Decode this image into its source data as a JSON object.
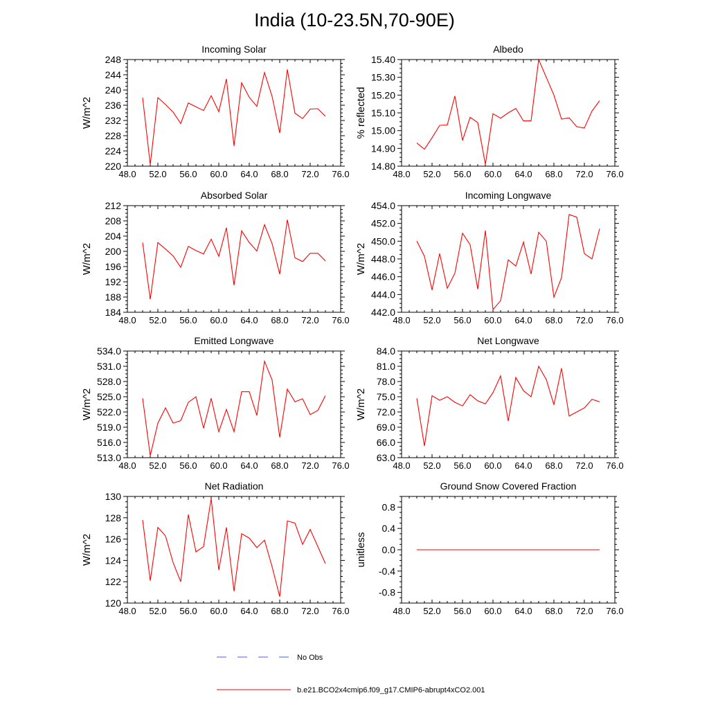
{
  "title": "India (10-23.5N,70-90E)",
  "legend": [
    {
      "label": "No Obs",
      "style": "dashed",
      "color": "#4a5fd0"
    },
    {
      "label": "b.e21.BCO2x4cmip6.f09_g17.CMIP6-abrupt4xCO2.001",
      "style": "solid",
      "color": "#ff0000"
    }
  ],
  "chart_data": [
    {
      "type": "line",
      "title": "Incoming Solar",
      "ylabel": "W/m^2",
      "xlim": [
        48,
        76
      ],
      "ylim": [
        220,
        248
      ],
      "xticks": [
        48,
        52,
        56,
        60,
        64,
        68,
        72,
        76
      ],
      "xtick_labels": [
        "48.0",
        "52.0",
        "56.0",
        "60.0",
        "64.0",
        "68.0",
        "72.0",
        "76.0"
      ],
      "yticks": [
        220,
        224,
        228,
        232,
        236,
        240,
        244,
        248
      ],
      "ytick_labels": [
        "220",
        "224",
        "228",
        "232",
        "236",
        "240",
        "244",
        "248"
      ],
      "series": [
        {
          "name": "b.e21.BCO2x4cmip6.f09_g17.CMIP6-abrupt4xCO2.001",
          "color": "#ff0000",
          "x": [
            50,
            51,
            52,
            53,
            54,
            55,
            56,
            57,
            58,
            59,
            60,
            61,
            62,
            63,
            64,
            65,
            66,
            67,
            68,
            69,
            70,
            71,
            72,
            73,
            74
          ],
          "y": [
            238,
            220.4,
            238,
            236.2,
            234.2,
            231.2,
            236.6,
            235.6,
            234.6,
            238.5,
            234.3,
            242.9,
            225.3,
            241.9,
            238.1,
            235.7,
            244.6,
            238.3,
            228.7,
            245.4,
            233.9,
            232.5,
            235.0,
            235.1,
            233.1
          ]
        }
      ]
    },
    {
      "type": "line",
      "title": "Albedo",
      "ylabel": "% reflected",
      "xlim": [
        48,
        76
      ],
      "ylim": [
        14.8,
        15.4
      ],
      "xticks": [
        48,
        52,
        56,
        60,
        64,
        68,
        72,
        76
      ],
      "xtick_labels": [
        "48.0",
        "52.0",
        "56.0",
        "60.0",
        "64.0",
        "68.0",
        "72.0",
        "76.0"
      ],
      "yticks": [
        14.8,
        14.9,
        15.0,
        15.1,
        15.2,
        15.3,
        15.4
      ],
      "ytick_labels": [
        "14.80",
        "14.90",
        "15.00",
        "15.10",
        "15.20",
        "15.30",
        "15.40"
      ],
      "series": [
        {
          "name": "b.e21.BCO2x4cmip6.f09_g17.CMIP6-abrupt4xCO2.001",
          "color": "#ff0000",
          "x": [
            50,
            51,
            52,
            53,
            54,
            55,
            56,
            57,
            58,
            59,
            60,
            61,
            62,
            63,
            64,
            65,
            66,
            67,
            68,
            69,
            70,
            71,
            72,
            73,
            74
          ],
          "y": [
            14.93,
            14.895,
            14.96,
            15.03,
            15.032,
            15.195,
            14.945,
            15.075,
            15.045,
            14.81,
            15.095,
            15.07,
            15.1,
            15.125,
            15.055,
            15.055,
            15.4,
            15.3,
            15.2,
            15.065,
            15.072,
            15.022,
            15.015,
            15.11,
            15.168
          ]
        }
      ]
    },
    {
      "type": "line",
      "title": "Absorbed Solar",
      "ylabel": "W/m^2",
      "xlim": [
        48,
        76
      ],
      "ylim": [
        184,
        212
      ],
      "xticks": [
        48,
        52,
        56,
        60,
        64,
        68,
        72,
        76
      ],
      "xtick_labels": [
        "48.0",
        "52.0",
        "56.0",
        "60.0",
        "64.0",
        "68.0",
        "72.0",
        "76.0"
      ],
      "yticks": [
        184,
        188,
        192,
        196,
        200,
        204,
        208,
        212
      ],
      "ytick_labels": [
        "184",
        "188",
        "192",
        "196",
        "200",
        "204",
        "208",
        "212"
      ],
      "series": [
        {
          "name": "b.e21.BCO2x4cmip6.f09_g17.CMIP6-abrupt4xCO2.001",
          "color": "#ff0000",
          "x": [
            50,
            51,
            52,
            53,
            54,
            55,
            56,
            57,
            58,
            59,
            60,
            61,
            62,
            63,
            64,
            65,
            66,
            67,
            68,
            69,
            70,
            71,
            72,
            73,
            74
          ],
          "y": [
            202.3,
            187.4,
            202.3,
            200.6,
            198.8,
            195.8,
            201.3,
            200.2,
            199.3,
            203.2,
            198.7,
            206.2,
            191.1,
            205.4,
            202.3,
            200.1,
            207.0,
            202.0,
            194.0,
            208.3,
            198.3,
            197.3,
            199.5,
            199.5,
            197.5
          ]
        }
      ]
    },
    {
      "type": "line",
      "title": "Incoming Longwave",
      "ylabel": "W/m^2",
      "xlim": [
        48,
        76
      ],
      "ylim": [
        442,
        454
      ],
      "xticks": [
        48,
        52,
        56,
        60,
        64,
        68,
        72,
        76
      ],
      "xtick_labels": [
        "48.0",
        "52.0",
        "56.0",
        "60.0",
        "64.0",
        "68.0",
        "72.0",
        "76.0"
      ],
      "yticks": [
        442,
        444,
        446,
        448,
        450,
        452,
        454
      ],
      "ytick_labels": [
        "442.0",
        "444.0",
        "446.0",
        "448.0",
        "450.0",
        "452.0",
        "454.0"
      ],
      "series": [
        {
          "name": "b.e21.BCO2x4cmip6.f09_g17.CMIP6-abrupt4xCO2.001",
          "color": "#ff0000",
          "x": [
            50,
            51,
            52,
            53,
            54,
            55,
            56,
            57,
            58,
            59,
            60,
            61,
            62,
            63,
            64,
            65,
            66,
            67,
            68,
            69,
            70,
            71,
            72,
            73,
            74
          ],
          "y": [
            450.0,
            448.3,
            444.5,
            448.6,
            444.7,
            446.4,
            450.9,
            449.6,
            444.6,
            451.2,
            442.3,
            443.3,
            447.9,
            447.2,
            449.9,
            446.3,
            451.0,
            450.0,
            443.7,
            445.9,
            453.0,
            452.7,
            448.6,
            448.0,
            451.4
          ]
        }
      ]
    },
    {
      "type": "line",
      "title": "Emitted Longwave",
      "ylabel": "W/m^2",
      "xlim": [
        48,
        76
      ],
      "ylim": [
        513,
        534
      ],
      "xticks": [
        48,
        52,
        56,
        60,
        64,
        68,
        72,
        76
      ],
      "xtick_labels": [
        "48.0",
        "52.0",
        "56.0",
        "60.0",
        "64.0",
        "68.0",
        "72.0",
        "76.0"
      ],
      "yticks": [
        513,
        516,
        519,
        522,
        525,
        528,
        531,
        534
      ],
      "ytick_labels": [
        "513.0",
        "516.0",
        "519.0",
        "522.0",
        "525.0",
        "528.0",
        "531.0",
        "534.0"
      ],
      "series": [
        {
          "name": "b.e21.BCO2x4cmip6.f09_g17.CMIP6-abrupt4xCO2.001",
          "color": "#ff0000",
          "x": [
            50,
            51,
            52,
            53,
            54,
            55,
            56,
            57,
            58,
            59,
            60,
            61,
            62,
            63,
            64,
            65,
            66,
            67,
            68,
            69,
            70,
            71,
            72,
            73,
            74
          ],
          "y": [
            524.7,
            513.4,
            519.8,
            522.8,
            519.8,
            520.3,
            523.9,
            525.0,
            518.8,
            524.7,
            518.1,
            522.5,
            518.1,
            526.0,
            526.0,
            521.3,
            532.0,
            528.3,
            517.0,
            526.5,
            524.0,
            524.6,
            521.5,
            522.3,
            525.2
          ]
        }
      ]
    },
    {
      "type": "line",
      "title": "Net Longwave",
      "ylabel": "W/m^2",
      "xlim": [
        48,
        76
      ],
      "ylim": [
        63,
        84
      ],
      "xticks": [
        48,
        52,
        56,
        60,
        64,
        68,
        72,
        76
      ],
      "xtick_labels": [
        "48.0",
        "52.0",
        "56.0",
        "60.0",
        "64.0",
        "68.0",
        "72.0",
        "76.0"
      ],
      "yticks": [
        63,
        66,
        69,
        72,
        75,
        78,
        81,
        84
      ],
      "ytick_labels": [
        "63.0",
        "66.0",
        "69.0",
        "72.0",
        "75.0",
        "78.0",
        "81.0",
        "84.0"
      ],
      "series": [
        {
          "name": "b.e21.BCO2x4cmip6.f09_g17.CMIP6-abrupt4xCO2.001",
          "color": "#ff0000",
          "x": [
            50,
            51,
            52,
            53,
            54,
            55,
            56,
            57,
            58,
            59,
            60,
            61,
            62,
            63,
            64,
            65,
            66,
            67,
            68,
            69,
            70,
            71,
            72,
            73,
            74
          ],
          "y": [
            74.7,
            65.3,
            75.2,
            74.3,
            75.0,
            73.9,
            73.2,
            75.4,
            74.2,
            73.6,
            75.8,
            79.1,
            70.2,
            78.8,
            76.2,
            75.0,
            81.0,
            78.4,
            73.4,
            80.6,
            71.2,
            72.0,
            72.8,
            74.5,
            74.0
          ]
        }
      ]
    },
    {
      "type": "line",
      "title": "Net Radiation",
      "ylabel": "W/m^2",
      "xlim": [
        48,
        76
      ],
      "ylim": [
        120,
        130
      ],
      "xticks": [
        48,
        52,
        56,
        60,
        64,
        68,
        72,
        76
      ],
      "xtick_labels": [
        "48.0",
        "52.0",
        "56.0",
        "60.0",
        "64.0",
        "68.0",
        "72.0",
        "76.0"
      ],
      "yticks": [
        120,
        122,
        124,
        126,
        128,
        130
      ],
      "ytick_labels": [
        "120",
        "122",
        "124",
        "126",
        "128",
        "130"
      ],
      "series": [
        {
          "name": "b.e21.BCO2x4cmip6.f09_g17.CMIP6-abrupt4xCO2.001",
          "color": "#ff0000",
          "x": [
            50,
            51,
            52,
            53,
            54,
            55,
            56,
            57,
            58,
            59,
            60,
            61,
            62,
            63,
            64,
            65,
            66,
            67,
            68,
            69,
            70,
            71,
            72,
            73,
            74
          ],
          "y": [
            127.8,
            122.1,
            127.1,
            126.3,
            123.8,
            122.0,
            128.3,
            124.8,
            125.3,
            129.8,
            123.1,
            127.1,
            121.1,
            126.5,
            126.1,
            125.2,
            125.9,
            123.4,
            120.6,
            127.7,
            127.5,
            125.5,
            126.9,
            125.3,
            123.7
          ]
        }
      ]
    },
    {
      "type": "line",
      "title": "Ground Snow Covered Fraction",
      "ylabel": "unitless",
      "xlim": [
        48,
        76
      ],
      "ylim": [
        -1.0,
        1.0
      ],
      "xticks": [
        48,
        52,
        56,
        60,
        64,
        68,
        72,
        76
      ],
      "xtick_labels": [
        "48.0",
        "52.0",
        "56.0",
        "60.0",
        "64.0",
        "68.0",
        "72.0",
        "76.0"
      ],
      "yticks": [
        -0.8,
        -0.4,
        0.0,
        0.4,
        0.8
      ],
      "ytick_labels": [
        "-0.8",
        "-0.4",
        "0.0",
        "0.4",
        "0.8"
      ],
      "series": [
        {
          "name": "b.e21.BCO2x4cmip6.f09_g17.CMIP6-abrupt4xCO2.001",
          "color": "#ff0000",
          "x": [
            50,
            51,
            52,
            53,
            54,
            55,
            56,
            57,
            58,
            59,
            60,
            61,
            62,
            63,
            64,
            65,
            66,
            67,
            68,
            69,
            70,
            71,
            72,
            73,
            74
          ],
          "y": [
            0,
            0,
            0,
            0,
            0,
            0,
            0,
            0,
            0,
            0,
            0,
            0,
            0,
            0,
            0,
            0,
            0,
            0,
            0,
            0,
            0,
            0,
            0,
            0,
            0
          ]
        }
      ]
    }
  ]
}
